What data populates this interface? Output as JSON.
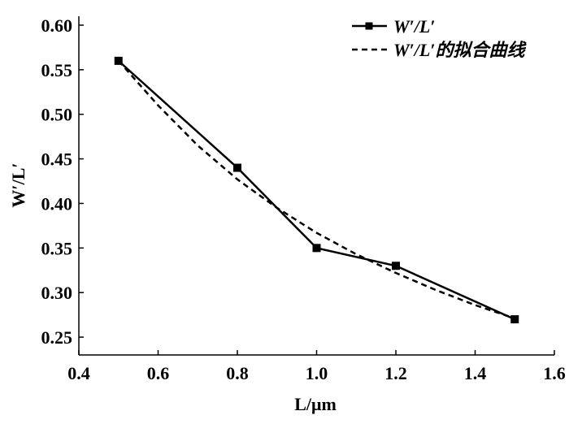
{
  "chart_data": {
    "type": "line",
    "xlabel": "L/μm",
    "ylabel": "W′/L′",
    "xlim": [
      0.4,
      1.6
    ],
    "ylim": [
      0.23,
      0.61
    ],
    "x_ticks": [
      "0.4",
      "0.6",
      "0.8",
      "1.0",
      "1.2",
      "1.4",
      "1.6"
    ],
    "y_ticks": [
      "0.25",
      "0.30",
      "0.35",
      "0.40",
      "0.45",
      "0.50",
      "0.55",
      "0.60"
    ],
    "x_tick_values": [
      0.4,
      0.6,
      0.8,
      1.0,
      1.2,
      1.4,
      1.6
    ],
    "y_tick_values": [
      0.25,
      0.3,
      0.35,
      0.4,
      0.45,
      0.5,
      0.55,
      0.6
    ],
    "grid": false,
    "legend_position": "top-right",
    "series": [
      {
        "name": "W′/L′",
        "style": "solid-with-square-markers",
        "color": "#000000",
        "x": [
          0.5,
          0.8,
          1.0,
          1.2,
          1.5
        ],
        "y": [
          0.56,
          0.44,
          0.35,
          0.33,
          0.27
        ]
      },
      {
        "name": "W′/L′的拟合曲线",
        "style": "dashed",
        "color": "#000000",
        "x": [
          0.5,
          0.6,
          0.7,
          0.8,
          0.9,
          1.0,
          1.1,
          1.2,
          1.3,
          1.4,
          1.5
        ],
        "y": [
          0.56,
          0.51,
          0.465,
          0.427,
          0.395,
          0.367,
          0.343,
          0.322,
          0.303,
          0.286,
          0.271
        ]
      }
    ]
  }
}
